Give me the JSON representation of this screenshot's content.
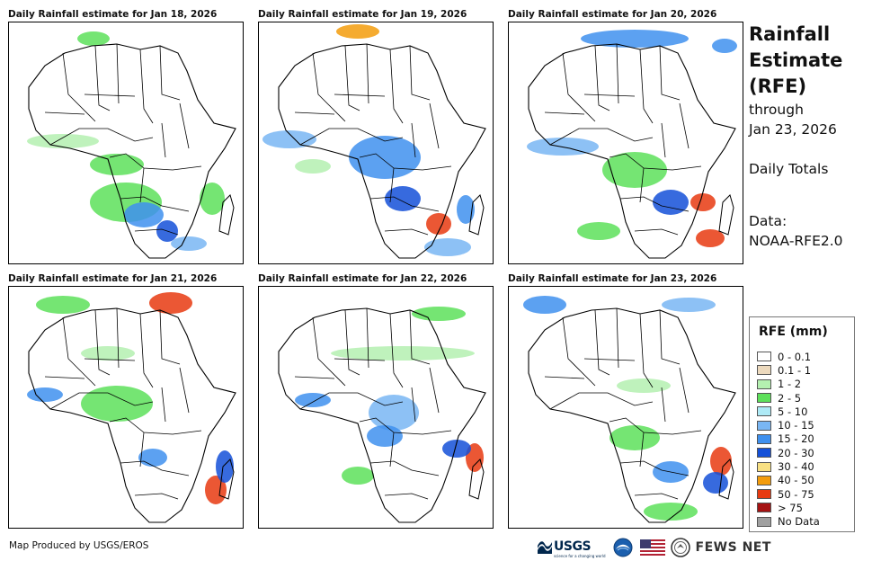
{
  "panels": [
    {
      "title": "Daily Rainfall estimate for Jan 18, 2026"
    },
    {
      "title": "Daily Rainfall estimate for Jan 19, 2026"
    },
    {
      "title": "Daily Rainfall estimate for Jan 20, 2026"
    },
    {
      "title": "Daily Rainfall estimate for Jan 21, 2026"
    },
    {
      "title": "Daily Rainfall estimate for Jan 22, 2026"
    },
    {
      "title": "Daily Rainfall estimate for Jan 23, 2026"
    }
  ],
  "side": {
    "line1": "Rainfall",
    "line2": "Estimate",
    "line3": "(RFE)",
    "line4": "through",
    "line5": "Jan 23, 2026",
    "line6": "Daily Totals",
    "line7": "Data:",
    "line8": "NOAA-RFE2.0"
  },
  "legend": {
    "title": "RFE (mm)",
    "items": [
      {
        "label": "0 - 0.1",
        "color": "#ffffff"
      },
      {
        "label": "0.1 - 1",
        "color": "#ecd9bd"
      },
      {
        "label": "1 - 2",
        "color": "#b4f0b0"
      },
      {
        "label": "2 - 5",
        "color": "#5de05a"
      },
      {
        "label": "5 - 10",
        "color": "#aeeaf6"
      },
      {
        "label": "10 - 15",
        "color": "#79b6f3"
      },
      {
        "label": "15 - 20",
        "color": "#3f90ee"
      },
      {
        "label": "20 - 30",
        "color": "#1450d8"
      },
      {
        "label": "30 - 40",
        "color": "#f8e083"
      },
      {
        "label": "40 - 50",
        "color": "#f39c0c"
      },
      {
        "label": "50 - 75",
        "color": "#e83a10"
      },
      {
        "label": "> 75",
        "color": "#a51212"
      },
      {
        "label": "No Data",
        "color": "#a0a0a0"
      }
    ]
  },
  "footer": {
    "credit": "Map Produced by USGS/EROS",
    "usgs": "USGS",
    "usgs_tagline": "science for a changing world",
    "fews": "FEWS NET"
  }
}
